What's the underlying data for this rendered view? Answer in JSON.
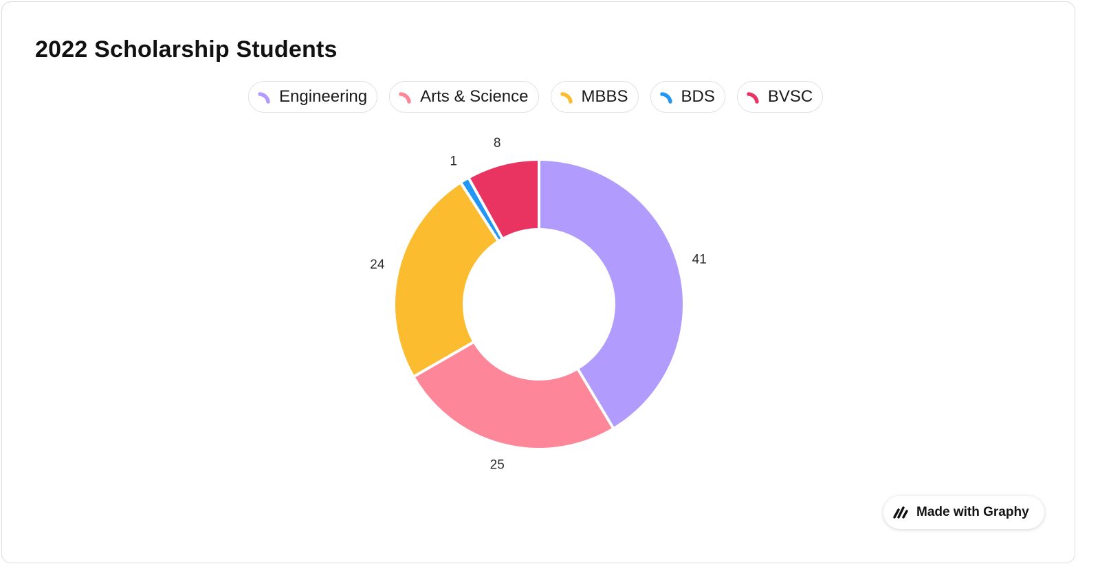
{
  "badge": {
    "text": "Made with Graphy",
    "icon": "graphy-logo-icon"
  },
  "chart_data": {
    "type": "pie",
    "style": "donut",
    "title": "2022 Scholarship Students",
    "legend": "top-center",
    "categories": [
      "Engineering",
      "Arts & Science",
      "MBBS",
      "BDS",
      "BVSC"
    ],
    "values": [
      41,
      25,
      24,
      1,
      8
    ],
    "colors": [
      "#b19bfc",
      "#fd8799",
      "#fbbc30",
      "#2196f3",
      "#e93462"
    ]
  }
}
